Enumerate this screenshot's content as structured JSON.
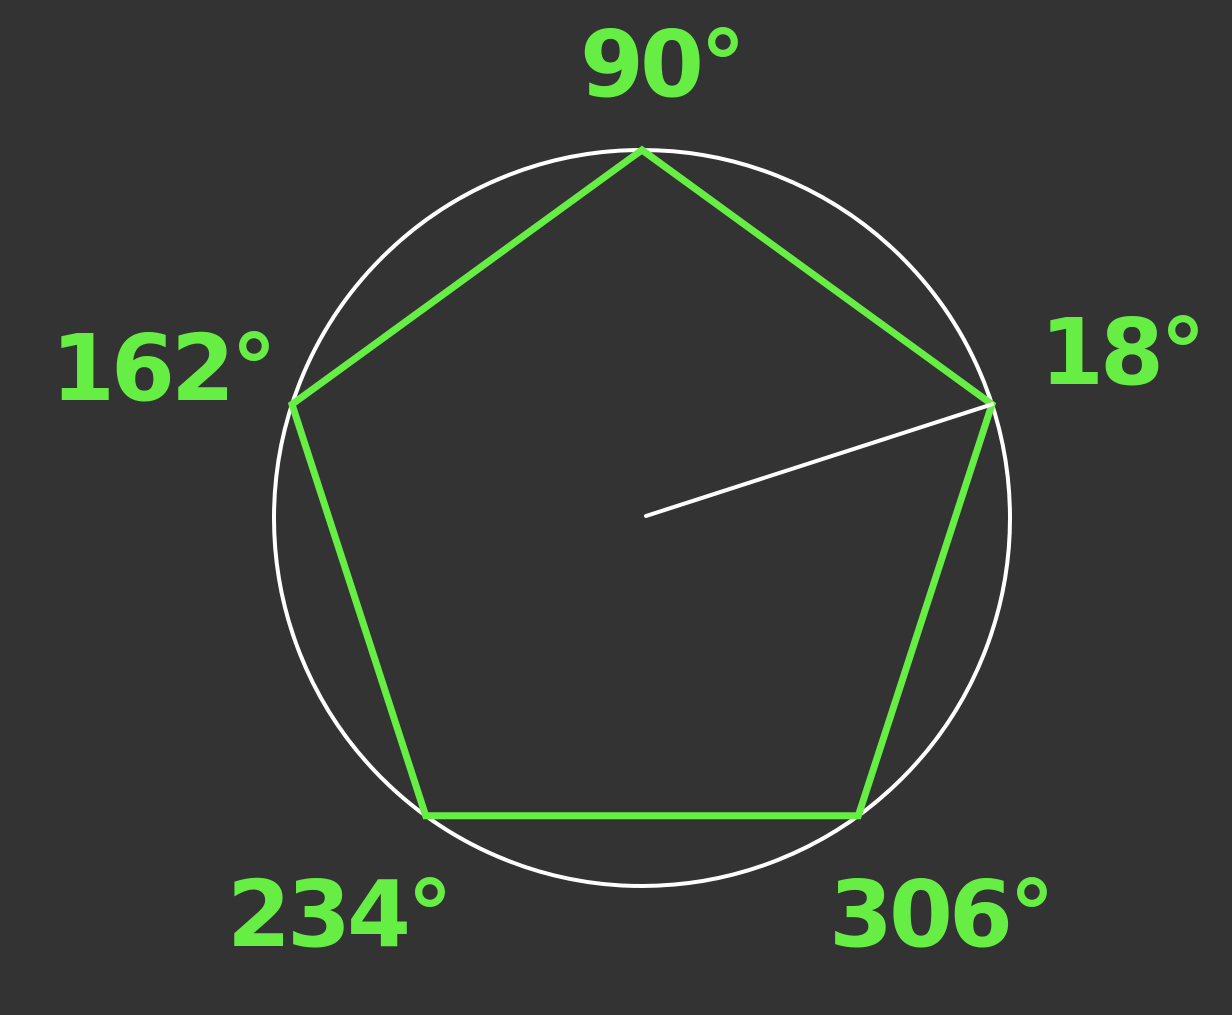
{
  "colors": {
    "background": "#333333",
    "pentagon": "#66ee44",
    "circle": "#ffffff",
    "radius": "#ffffff",
    "label": "#66ee44"
  },
  "diagram": {
    "shape": "regular pentagon inscribed in circle",
    "vertex_angles_deg": [
      90,
      18,
      306,
      234,
      162
    ],
    "radius_line_to_angle_deg": 18,
    "labels": [
      {
        "angle_deg": 90,
        "text": "90°"
      },
      {
        "angle_deg": 18,
        "text": "18°"
      },
      {
        "angle_deg": 306,
        "text": "306°"
      },
      {
        "angle_deg": 234,
        "text": "234°"
      },
      {
        "angle_deg": 162,
        "text": "162°"
      }
    ]
  }
}
